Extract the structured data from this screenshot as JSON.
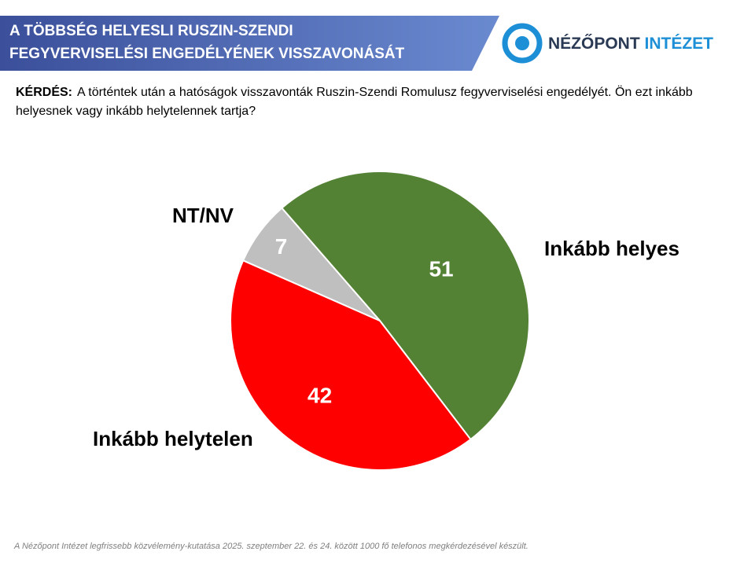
{
  "header": {
    "title_lines": [
      "A TÖBBSÉG HELYESLI RUSZIN-SZENDI",
      "FEGYVERVISELÉSI ENGEDÉLYÉNEK VISSZAVONÁSÁT"
    ],
    "logo": [
      "NÉZŐPONT",
      "INTÉZET"
    ]
  },
  "question": {
    "label": "KÉRDÉS:",
    "text": "A történtek után a hatóságok visszavonták Ruszin-Szendi Romulusz fegyverviselési engedélyét. Ön ezt inkább helyesnek vagy inkább helytelennek tartja?"
  },
  "chart_data": {
    "type": "pie",
    "categories": [
      "Inkább helyes",
      "Inkább helytelen",
      "NT/NV"
    ],
    "values": [
      51,
      42,
      7
    ],
    "colors": [
      "#548235",
      "#ff0000",
      "#bfbfbf"
    ]
  },
  "footnote": "A Nézőpont Intézet legfrissebb közvélemény-kutatása 2025. szeptember 22. és 24. között 1000 fő telefonos megkérdezésével készült."
}
